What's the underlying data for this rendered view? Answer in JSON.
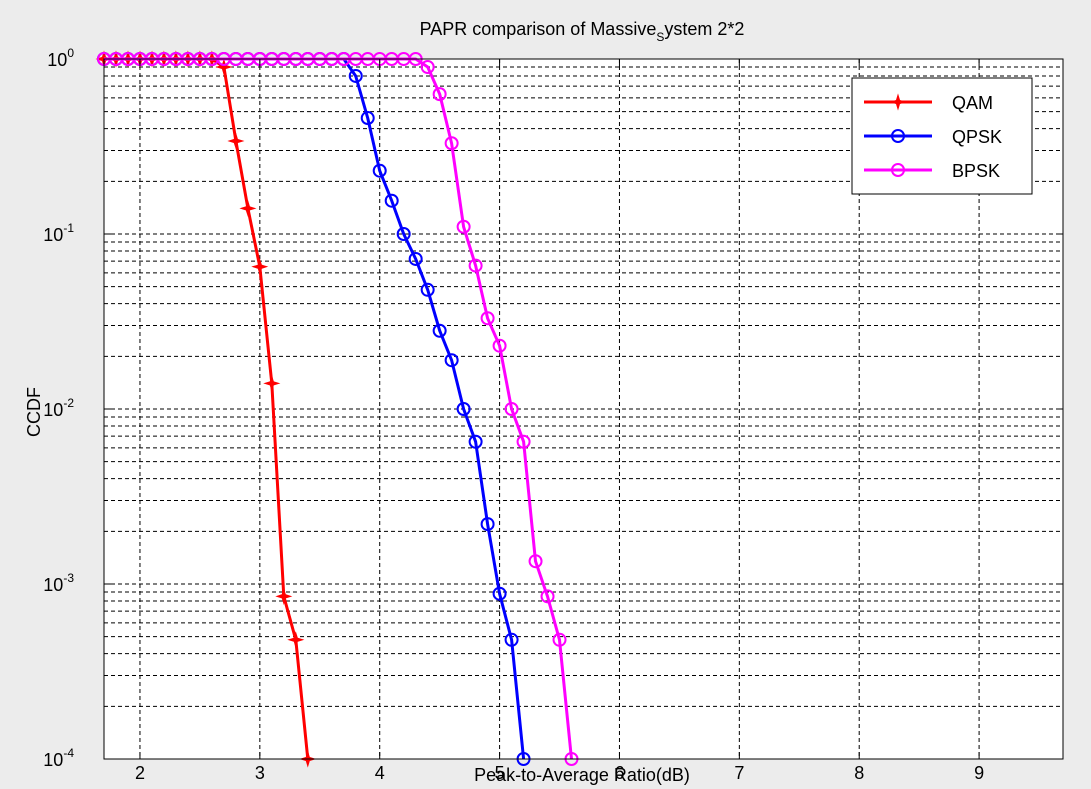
{
  "chart_data": {
    "type": "line",
    "title": {
      "prefix": "PAPR comparison of Massive",
      "subscript": "S",
      "suffix": "ystem 2*2"
    },
    "xlabel": "Peak-to-Average Ratio(dB)",
    "ylabel": "CCDF",
    "xlim": [
      1.7,
      9.7
    ],
    "ylim": [
      0.0001,
      1
    ],
    "yscale": "log",
    "grid": true,
    "legend_position": "top-right",
    "xticks": [
      "2",
      "3",
      "4",
      "5",
      "6",
      "7",
      "8",
      "9"
    ],
    "xtick_values": [
      2,
      3,
      4,
      5,
      6,
      7,
      8,
      9
    ],
    "yticks": [
      {
        "base": "10",
        "exp": "-4",
        "value": 0.0001
      },
      {
        "base": "10",
        "exp": "-3",
        "value": 0.001
      },
      {
        "base": "10",
        "exp": "-2",
        "value": 0.01
      },
      {
        "base": "10",
        "exp": "-1",
        "value": 0.1
      },
      {
        "base": "10",
        "exp": "0",
        "value": 1
      }
    ],
    "series": [
      {
        "name": "QAM",
        "color": "#ff0000",
        "marker": "star",
        "x": [
          1.7,
          1.8,
          1.9,
          2.0,
          2.1,
          2.2,
          2.3,
          2.4,
          2.5,
          2.6,
          2.7,
          2.8,
          2.9,
          3.0,
          3.1,
          3.2,
          3.3,
          3.4
        ],
        "y": [
          1,
          1,
          1,
          1,
          1,
          1,
          1,
          1,
          1,
          1,
          0.9,
          0.34,
          0.14,
          0.065,
          0.014,
          0.00085,
          0.00048,
          0.0001
        ]
      },
      {
        "name": "QPSK",
        "color": "#0000ff",
        "marker": "circle",
        "x": [
          1.7,
          1.8,
          1.9,
          2.0,
          2.1,
          2.2,
          2.3,
          2.4,
          2.5,
          2.6,
          2.7,
          2.8,
          2.9,
          3.0,
          3.1,
          3.2,
          3.3,
          3.4,
          3.5,
          3.6,
          3.7,
          3.8,
          3.9,
          4.0,
          4.1,
          4.2,
          4.3,
          4.4,
          4.5,
          4.6,
          4.7,
          4.8,
          4.9,
          5.0,
          5.1,
          5.2
        ],
        "y": [
          1,
          1,
          1,
          1,
          1,
          1,
          1,
          1,
          1,
          1,
          1,
          1,
          1,
          1,
          1,
          1,
          1,
          1,
          1,
          1,
          1,
          0.8,
          0.46,
          0.23,
          0.155,
          0.1,
          0.072,
          0.048,
          0.028,
          0.019,
          0.01,
          0.0065,
          0.0022,
          0.00088,
          0.00048,
          0.0001
        ]
      },
      {
        "name": "BPSK",
        "color": "#ff00ff",
        "marker": "circle",
        "x": [
          1.7,
          1.8,
          1.9,
          2.0,
          2.1,
          2.2,
          2.3,
          2.4,
          2.5,
          2.6,
          2.7,
          2.8,
          2.9,
          3.0,
          3.1,
          3.2,
          3.3,
          3.4,
          3.5,
          3.6,
          3.7,
          3.8,
          3.9,
          4.0,
          4.1,
          4.2,
          4.3,
          4.4,
          4.5,
          4.6,
          4.7,
          4.8,
          4.9,
          5.0,
          5.1,
          5.2,
          5.3,
          5.4,
          5.5,
          5.6
        ],
        "y": [
          1,
          1,
          1,
          1,
          1,
          1,
          1,
          1,
          1,
          1,
          1,
          1,
          1,
          1,
          1,
          1,
          1,
          1,
          1,
          1,
          1,
          1,
          1,
          1,
          1,
          1,
          1,
          0.9,
          0.63,
          0.33,
          0.11,
          0.066,
          0.033,
          0.023,
          0.01,
          0.0065,
          0.00135,
          0.00085,
          0.00048,
          0.0001
        ]
      }
    ]
  }
}
